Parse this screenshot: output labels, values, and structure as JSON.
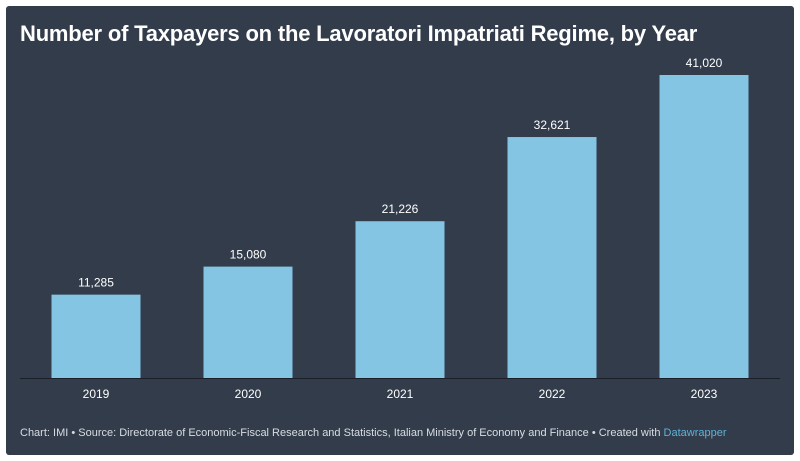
{
  "title": "Number of Taxpayers on the Lavoratori Impatriati Regime, by Year",
  "colors": {
    "background": "#323c4b",
    "bar": "#84c5e3",
    "text": "#ffffff",
    "baseline": "#1a1f27",
    "brand": "#5fb2d8"
  },
  "chart_data": {
    "type": "bar",
    "title": "Number of Taxpayers on the Lavoratori Impatriati Regime, by Year",
    "categories": [
      "2019",
      "2020",
      "2021",
      "2022",
      "2023"
    ],
    "values": [
      11285,
      15080,
      21226,
      32621,
      41020
    ],
    "value_labels": [
      "11,285",
      "15,080",
      "21,226",
      "32,621",
      "41,020"
    ],
    "xlabel": "",
    "ylabel": "",
    "ylim": [
      0,
      41020
    ],
    "grid": false,
    "legend": "none"
  },
  "footer": {
    "chart_prefix": "Chart: ",
    "chart_credit": "IMI",
    "separator": " • ",
    "source_prefix": "Source: ",
    "source": "Directorate of Economic-Fiscal Research and Statistics, Italian Ministry of Economy and Finance",
    "created_with": "Created with ",
    "brand": "Datawrapper"
  }
}
